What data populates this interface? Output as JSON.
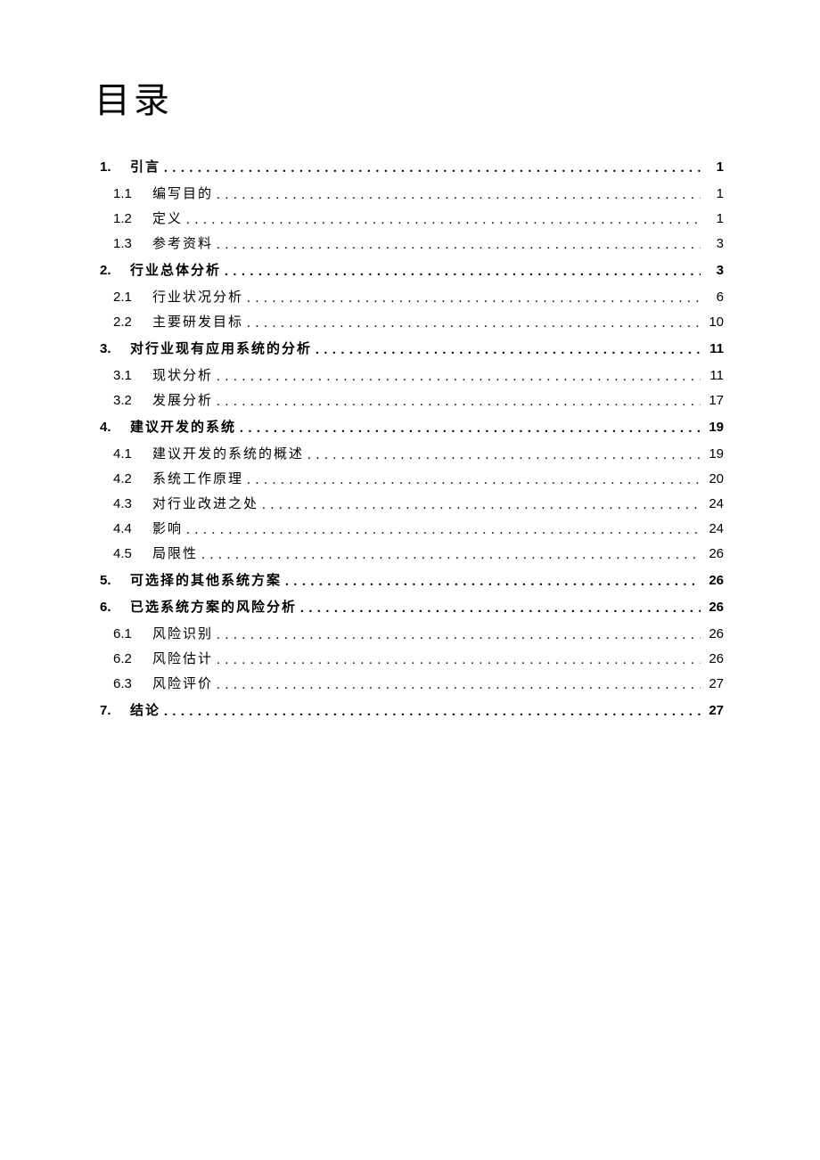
{
  "title": "目录",
  "entries": [
    {
      "level": 1,
      "num": "1.",
      "label": "引言",
      "page": "1"
    },
    {
      "level": 2,
      "num": "1.1",
      "label": "编写目的",
      "page": "1"
    },
    {
      "level": 2,
      "num": "1.2",
      "label": "定义",
      "page": "1"
    },
    {
      "level": 2,
      "num": "1.3",
      "label": "参考资料",
      "page": "3"
    },
    {
      "level": 1,
      "num": "2.",
      "label": "行业总体分析",
      "page": "3"
    },
    {
      "level": 2,
      "num": "2.1",
      "label": "行业状况分析",
      "page": "6"
    },
    {
      "level": 2,
      "num": "2.2",
      "label": "主要研发目标",
      "page": "10"
    },
    {
      "level": 1,
      "num": "3.",
      "label": "对行业现有应用系统的分析",
      "page": "11"
    },
    {
      "level": 2,
      "num": "3.1",
      "label": "现状分析",
      "page": "11"
    },
    {
      "level": 2,
      "num": "3.2",
      "label": "发展分析",
      "page": "17"
    },
    {
      "level": 1,
      "num": "4.",
      "label": "建议开发的系统",
      "page": "19"
    },
    {
      "level": 2,
      "num": "4.1",
      "label": "建议开发的系统的概述",
      "page": "19"
    },
    {
      "level": 2,
      "num": "4.2",
      "label": "系统工作原理",
      "page": "20"
    },
    {
      "level": 2,
      "num": "4.3",
      "label": "对行业改进之处",
      "page": "24"
    },
    {
      "level": 2,
      "num": "4.4",
      "label": "影响",
      "page": "24"
    },
    {
      "level": 2,
      "num": "4.5",
      "label": "局限性",
      "page": "26"
    },
    {
      "level": 1,
      "num": "5.",
      "label": "可选择的其他系统方案",
      "page": "26"
    },
    {
      "level": 1,
      "num": "6.",
      "label": "已选系统方案的风险分析",
      "page": "26"
    },
    {
      "level": 2,
      "num": "6.1",
      "label": "风险识别",
      "page": "26"
    },
    {
      "level": 2,
      "num": "6.2",
      "label": "风险估计",
      "page": "26"
    },
    {
      "level": 2,
      "num": "6.3",
      "label": "风险评价",
      "page": "27"
    },
    {
      "level": 1,
      "num": "7.",
      "label": "结论",
      "page": "27"
    }
  ],
  "colors": {
    "text": "#000000",
    "background": "#ffffff"
  }
}
